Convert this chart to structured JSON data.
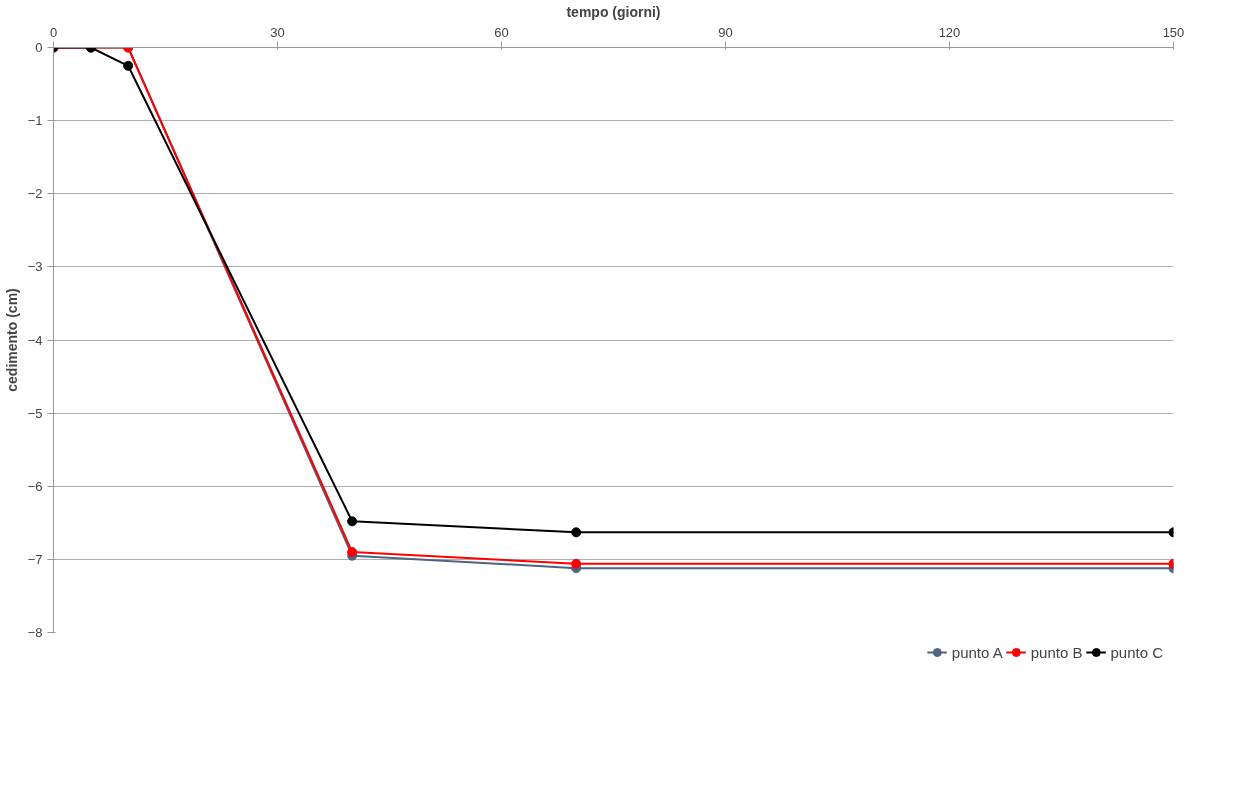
{
  "chart_data": {
    "type": "line",
    "xlabel": "tempo (giorni)",
    "ylabel": "cedimento (cm)",
    "x": [
      0,
      5,
      10,
      40,
      70,
      150
    ],
    "series": [
      {
        "name": "punto A",
        "color": "#4f6481",
        "values": [
          0,
          0,
          0,
          -6.95,
          -7.12,
          -7.12
        ]
      },
      {
        "name": "punto B",
        "color": "#ff0000",
        "values": [
          0,
          0,
          0,
          -6.9,
          -7.06,
          -7.06
        ]
      },
      {
        "name": "punto C",
        "color": "#000000",
        "values": [
          0,
          0,
          -0.25,
          -6.48,
          -6.63,
          -6.63
        ]
      }
    ],
    "xlim": [
      0,
      150
    ],
    "xticks": [
      0,
      30,
      60,
      90,
      120,
      150
    ],
    "ylim": [
      -8,
      0
    ],
    "yticks": [
      -8,
      -7,
      -6,
      -5,
      -4,
      -3,
      -2,
      -1,
      0
    ],
    "grid": "y",
    "legend": "bottom",
    "marker": "circle",
    "line_style": "solid"
  }
}
